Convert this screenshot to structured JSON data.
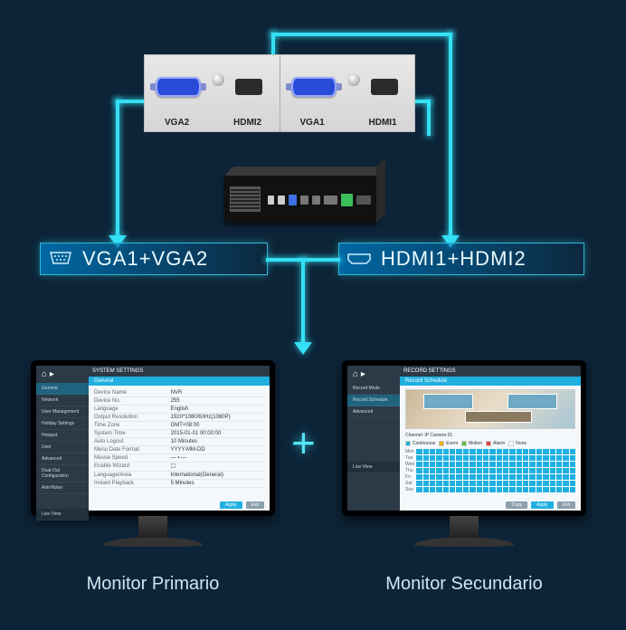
{
  "colors": {
    "bg": "#0d2438",
    "glow": "#34e0f5",
    "barFill": "#006caa",
    "accent": "#1fb0e0",
    "sidebarBg": "#2b3a46",
    "vgaBlue": "#2a4bd8"
  },
  "portsPanel": {
    "labels": {
      "vga2": "VGA2",
      "hdmi2": "HDMI2",
      "vga1": "VGA1",
      "hdmi1": "HDMI1"
    }
  },
  "bars": {
    "vga": "VGA1+VGA2",
    "hdmi": "HDMI1+HDMI2"
  },
  "monitors": {
    "primary": {
      "caption": "Monitor Primario",
      "title": "SYSTEM SETTINGS",
      "tab": "General",
      "sidebar": [
        "General",
        "Network",
        "User Management",
        "Holiday Settings",
        "Hotspot",
        "User",
        "Advanced",
        "Dual-Out Configuration",
        "Anti-flicker"
      ],
      "sidebarFooter": "Live View",
      "rows": [
        {
          "k": "Device Name",
          "v": "NVR"
        },
        {
          "k": "Device No.",
          "v": "255"
        },
        {
          "k": "Language",
          "v": "English"
        },
        {
          "k": "Output Resolution",
          "v": "1920*1080/60Hz(1080P)"
        },
        {
          "k": "Time Zone",
          "v": "GMT+08:00"
        },
        {
          "k": "System Time",
          "v": "2015-01-01 00:00:00"
        },
        {
          "k": "Auto Logout",
          "v": "10 Minutes"
        },
        {
          "k": "Menu Date Format",
          "v": "YYYY-MM-DD"
        },
        {
          "k": "Mouse Speed",
          "v": "— ▪ —"
        },
        {
          "k": "Enable Wizard",
          "v": "☐"
        },
        {
          "k": "Language/Area",
          "v": "International(General)"
        },
        {
          "k": "Instant Playback",
          "v": "5 Minutes"
        }
      ],
      "buttons": [
        "Apply",
        "Exit"
      ]
    },
    "secondary": {
      "caption": "Monitor Secundario",
      "title": "RECORD SETTINGS",
      "tab": "Record Schedule",
      "sidebar": [
        "Record Mode",
        "Record Schedule",
        "Advanced"
      ],
      "sidebarFooter": "Live View",
      "channelLabel": "Channel:",
      "channelValue": "IP Camera 01",
      "legend": [
        {
          "label": "Continuous",
          "color": "#1fb0e0"
        },
        {
          "label": "Event",
          "color": "#f0b000"
        },
        {
          "label": "Motion",
          "color": "#5bbf3b"
        },
        {
          "label": "Alarm",
          "color": "#e04040"
        },
        {
          "label": "None",
          "color": "#ffffff"
        }
      ],
      "days": [
        "Mon",
        "Tue",
        "Wed",
        "Thu",
        "Fri",
        "Sat",
        "Sun"
      ],
      "buttons": [
        "Copy",
        "Apply",
        "Exit"
      ]
    }
  }
}
